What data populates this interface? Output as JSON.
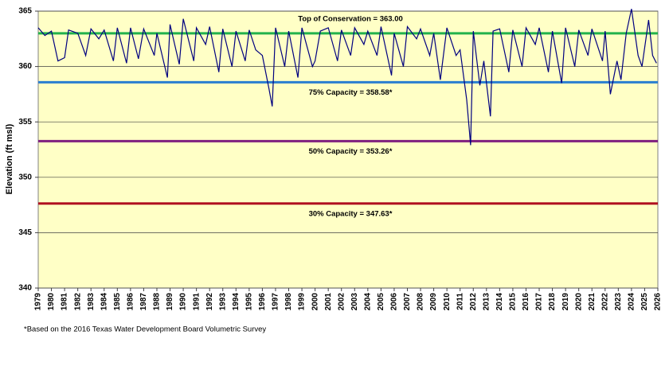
{
  "chart_data": {
    "type": "line",
    "y_label": "Elevation (ft msl)",
    "footnote": "*Based on the 2016 Texas Water Development Board Volumetric Survey",
    "color": "#00007f",
    "background": "#ffffc6",
    "grid": true,
    "xlim": [
      1979,
      2026
    ],
    "ylim": [
      340,
      365
    ],
    "yticks": [
      340,
      345,
      350,
      355,
      360,
      365
    ],
    "xticks": [
      1979,
      1980,
      1981,
      1982,
      1983,
      1984,
      1985,
      1986,
      1987,
      1988,
      1989,
      1990,
      1991,
      1992,
      1993,
      1994,
      1995,
      1996,
      1997,
      1998,
      1999,
      2000,
      2001,
      2002,
      2003,
      2004,
      2005,
      2006,
      2007,
      2008,
      2009,
      2010,
      2011,
      2012,
      2013,
      2014,
      2015,
      2016,
      2017,
      2018,
      2019,
      2020,
      2021,
      2022,
      2023,
      2024,
      2025,
      2026
    ],
    "reference_lines": [
      {
        "label": "Top of Conservation = 363.00",
        "value": 363.0,
        "color": "#22b24c",
        "position": "above"
      },
      {
        "label": "75% Capacity = 358.58*",
        "value": 358.58,
        "color": "#2a7ed0",
        "position": "below"
      },
      {
        "label": "50% Capacity = 353.26*",
        "value": 353.26,
        "color": "#7f1f7f",
        "position": "below"
      },
      {
        "label": "30% Capacity = 347.63*",
        "value": 347.63,
        "color": "#b01020",
        "position": "below"
      }
    ],
    "x": [
      1979,
      1979.5,
      1980,
      1980.5,
      1981,
      1981.3,
      1982,
      1982.6,
      1983,
      1983.6,
      1984,
      1984.7,
      1985,
      1985.7,
      1986,
      1986.6,
      1987,
      1987.8,
      1988,
      1988.8,
      1989,
      1989.7,
      1990,
      1990.8,
      1991,
      1991.7,
      1992,
      1992.7,
      1993,
      1993.7,
      1994,
      1994.7,
      1995,
      1995.5,
      1996,
      1996.5,
      1996.75,
      1997,
      1997.7,
      1998,
      1998.7,
      1999,
      1999.8,
      2000,
      2000.4,
      2001,
      2001.7,
      2002,
      2002.7,
      2003,
      2003.7,
      2004,
      2004.7,
      2005,
      2005.8,
      2006,
      2006.7,
      2007,
      2007.7,
      2008,
      2008.7,
      2009,
      2009.5,
      2010,
      2010.7,
      2011,
      2011.5,
      2011.8,
      2012,
      2012.5,
      2012.8,
      2013.3,
      2013.5,
      2014,
      2014.7,
      2015,
      2015.7,
      2016,
      2016.7,
      2017,
      2017.7,
      2018,
      2018.7,
      2019,
      2019.7,
      2020,
      2020.7,
      2021,
      2021.8,
      2022,
      2022.4,
      2022.9,
      2023.2,
      2023.6,
      2024,
      2024.5,
      2024.8,
      2025.3,
      2025.6,
      2025.9
    ],
    "values": [
      363.5,
      362.8,
      363.2,
      360.5,
      360.8,
      363.3,
      363.0,
      361.0,
      363.4,
      362.5,
      363.3,
      360.5,
      363.5,
      360.3,
      363.5,
      360.7,
      363.4,
      361.0,
      363.0,
      359.0,
      363.8,
      360.2,
      364.3,
      360.5,
      363.5,
      362.0,
      363.6,
      359.5,
      363.4,
      360.0,
      363.2,
      360.5,
      363.3,
      361.5,
      361.0,
      358.0,
      356.4,
      363.5,
      360.0,
      363.2,
      359.0,
      363.5,
      360.0,
      360.5,
      363.2,
      363.5,
      360.5,
      363.3,
      361.0,
      363.5,
      362.0,
      363.2,
      361.0,
      363.6,
      359.2,
      363.0,
      360.0,
      363.6,
      362.5,
      363.4,
      361.0,
      363.0,
      358.8,
      363.5,
      361.0,
      361.5,
      357.0,
      352.9,
      363.2,
      358.3,
      360.5,
      355.5,
      363.2,
      363.4,
      359.5,
      363.3,
      360.0,
      363.5,
      362.0,
      363.5,
      359.5,
      363.2,
      358.5,
      363.5,
      360.0,
      363.3,
      361.0,
      363.4,
      360.5,
      363.2,
      357.5,
      360.5,
      358.8,
      363.0,
      365.2,
      361.0,
      360.0,
      364.2,
      361.0,
      360.3
    ]
  }
}
